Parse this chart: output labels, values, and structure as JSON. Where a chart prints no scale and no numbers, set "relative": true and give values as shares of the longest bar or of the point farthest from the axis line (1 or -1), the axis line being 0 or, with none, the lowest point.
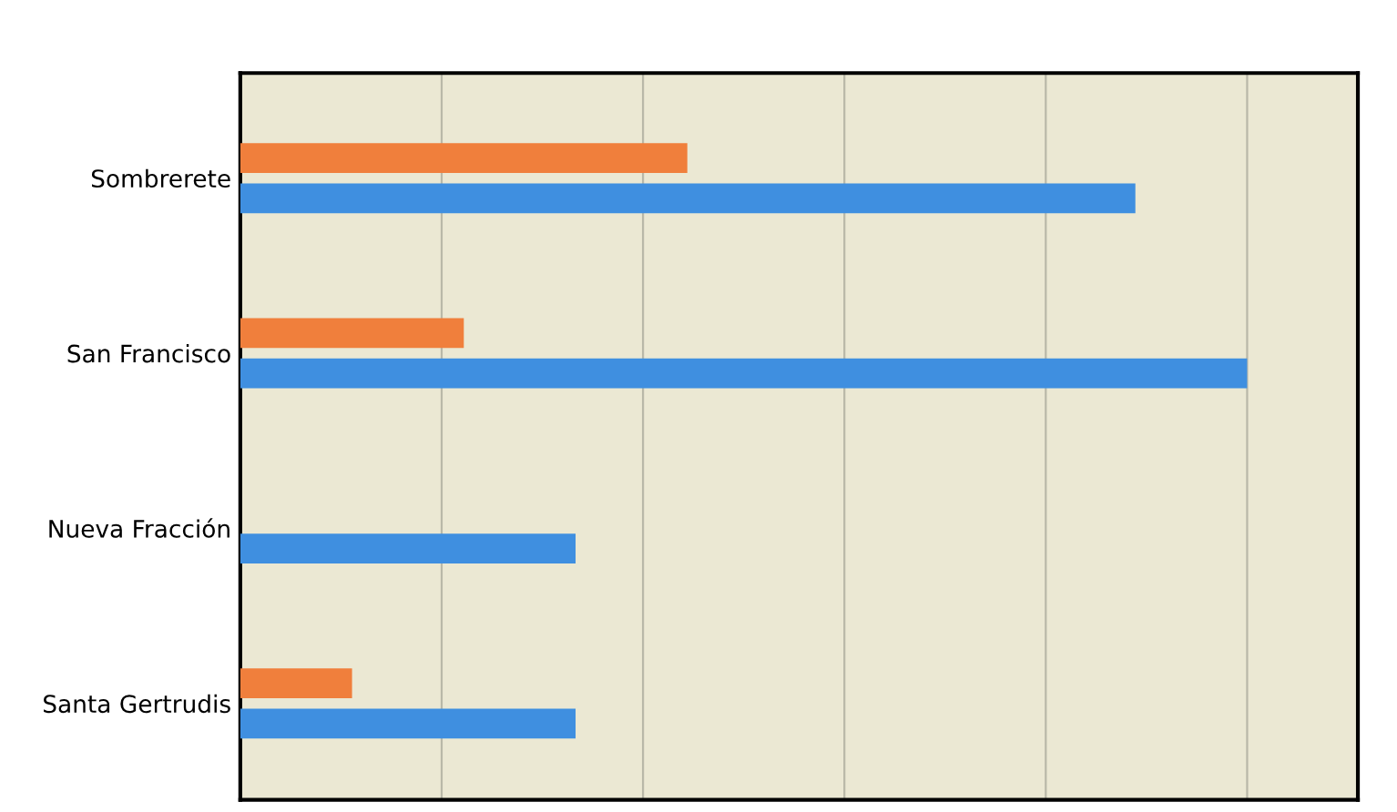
{
  "chart_data": {
    "type": "bar",
    "orientation": "horizontal",
    "relative": true,
    "grid": "x",
    "categories": [
      "Sombrerete",
      "San Francisco",
      "Nueva Fracción",
      "Santa Gertrudis"
    ],
    "series": [
      {
        "color": "#f07f3c",
        "values": [
          0.444,
          0.222,
          null,
          0.111
        ]
      },
      {
        "color": "#3f8fe0",
        "values": [
          0.889,
          1,
          0.333,
          0.333
        ]
      }
    ]
  }
}
